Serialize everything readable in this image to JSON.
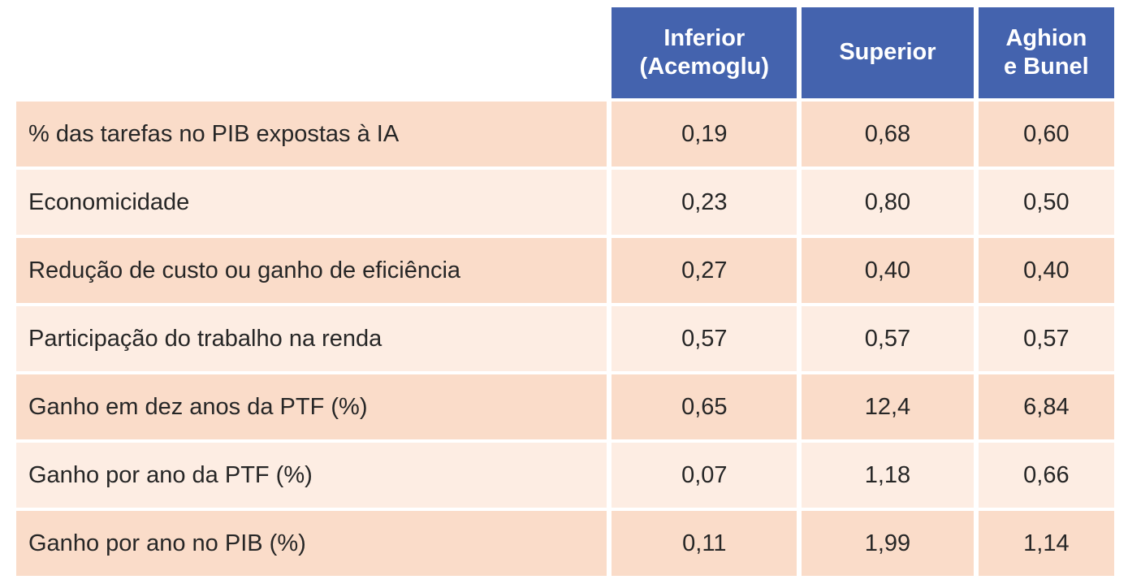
{
  "table": {
    "header": {
      "label_col": "",
      "columns": [
        {
          "id": "inferior-acemoglu",
          "label": "Inferior\n(Acemoglu)"
        },
        {
          "id": "superior",
          "label": "Superior"
        },
        {
          "id": "aghion-e-bunel",
          "label": "Aghion\ne Bunel"
        }
      ]
    },
    "rows": [
      {
        "label": "% das tarefas no PIB expostas à IA",
        "values": [
          "0,19",
          "0,68",
          "0,60"
        ]
      },
      {
        "label": "Economicidade",
        "values": [
          "0,23",
          "0,80",
          "0,50"
        ]
      },
      {
        "label": "Redução de custo ou ganho de eficiência",
        "values": [
          "0,27",
          "0,40",
          "0,40"
        ]
      },
      {
        "label": "Participação do trabalho na renda",
        "values": [
          "0,57",
          "0,57",
          "0,57"
        ]
      },
      {
        "label": "Ganho em dez anos da PTF (%)",
        "values": [
          "0,65",
          "12,4",
          "6,84"
        ]
      },
      {
        "label": "Ganho por ano da PTF (%)",
        "values": [
          "0,07",
          "1,18",
          "0,66"
        ]
      },
      {
        "label": "Ganho por ano no PIB (%)",
        "values": [
          "0,11",
          "1,99",
          "1,14"
        ]
      }
    ]
  },
  "colors": {
    "header_bg": "#4463AE",
    "header_text": "#FFFFFF",
    "row_dark_bg": "#FADCC9",
    "row_light_bg": "#FDEDE3",
    "body_text": "#262626",
    "page_bg": "#FFFFFF"
  },
  "chart_data": {
    "type": "table",
    "columns": [
      "",
      "Inferior (Acemoglu)",
      "Superior",
      "Aghion e Bunel"
    ],
    "rows": [
      [
        "% das tarefas no PIB expostas à IA",
        "0,19",
        "0,68",
        "0,60"
      ],
      [
        "Economicidade",
        "0,23",
        "0,80",
        "0,50"
      ],
      [
        "Redução de custo ou ganho de eficiência",
        "0,27",
        "0,40",
        "0,40"
      ],
      [
        "Participação do trabalho na renda",
        "0,57",
        "0,57",
        "0,57"
      ],
      [
        "Ganho em dez anos da PTF (%)",
        "0,65",
        "12,4",
        "6,84"
      ],
      [
        "Ganho por ano da PTF (%)",
        "0,07",
        "1,18",
        "0,66"
      ],
      [
        "Ganho por ano no PIB (%)",
        "0,11",
        "1,99",
        "1,14"
      ]
    ],
    "notes": "Decimal comma (pt-BR). Alternating peach row shading, blue header, no header over label column."
  }
}
